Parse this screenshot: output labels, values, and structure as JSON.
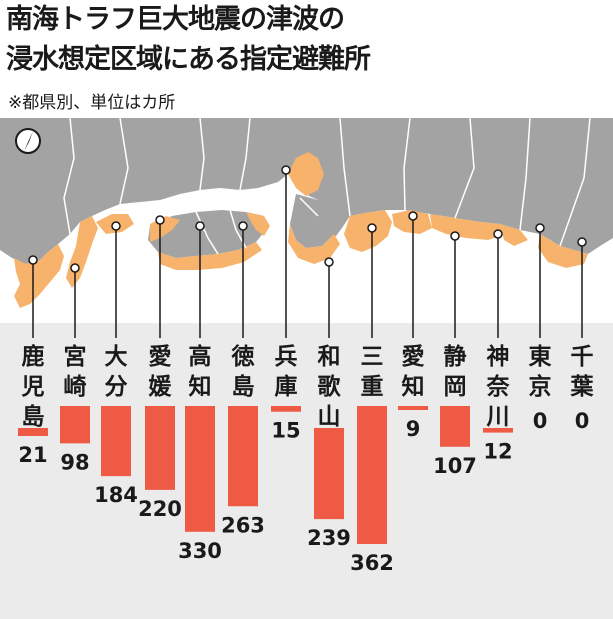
{
  "title_line1": "南海トラフ巨大地震の津波の",
  "title_line2": "浸水想定区域にある指定避難所",
  "note": "※都県別、単位はカ所",
  "colors": {
    "bar": "#ef5a45",
    "inundation": "#f7b26b",
    "land": "#a3a3a3",
    "border": "#ffffff",
    "panel": "#e9e9e9"
  },
  "chart_data": {
    "type": "bar",
    "categories": [
      "鹿児島",
      "宮崎",
      "大分",
      "愛媛",
      "高知",
      "徳島",
      "兵庫",
      "和歌山",
      "三重",
      "愛知",
      "静岡",
      "神奈川",
      "東京",
      "千葉"
    ],
    "values": [
      21,
      98,
      184,
      220,
      330,
      263,
      15,
      239,
      362,
      9,
      107,
      12,
      0,
      0
    ]
  }
}
